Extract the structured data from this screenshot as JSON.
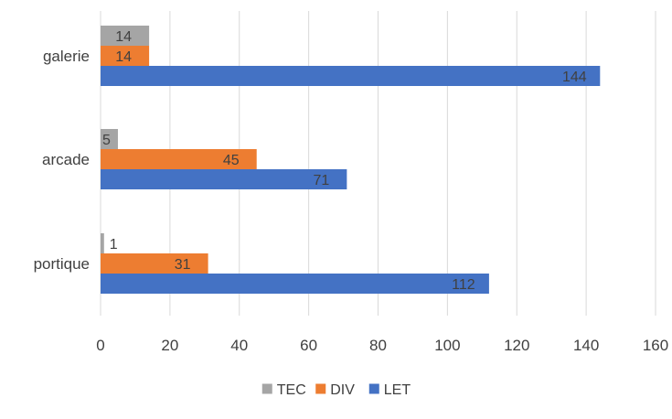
{
  "chart_data": {
    "type": "bar",
    "orientation": "horizontal",
    "title": "",
    "xlabel": "",
    "ylabel": "",
    "categories": [
      "galerie",
      "arcade",
      "portique"
    ],
    "series": [
      {
        "name": "TEC",
        "color": "#a5a5a5",
        "values": [
          14,
          5,
          1
        ]
      },
      {
        "name": "DIV",
        "color": "#ed7d31",
        "values": [
          14,
          45,
          31
        ]
      },
      {
        "name": "LET",
        "color": "#4472c4",
        "values": [
          144,
          71,
          112
        ]
      }
    ],
    "xlim": [
      0,
      160
    ],
    "xticks": [
      0,
      20,
      40,
      60,
      80,
      100,
      120,
      140,
      160
    ],
    "grid": "vertical",
    "legend": "bottom",
    "data_labels": true
  }
}
